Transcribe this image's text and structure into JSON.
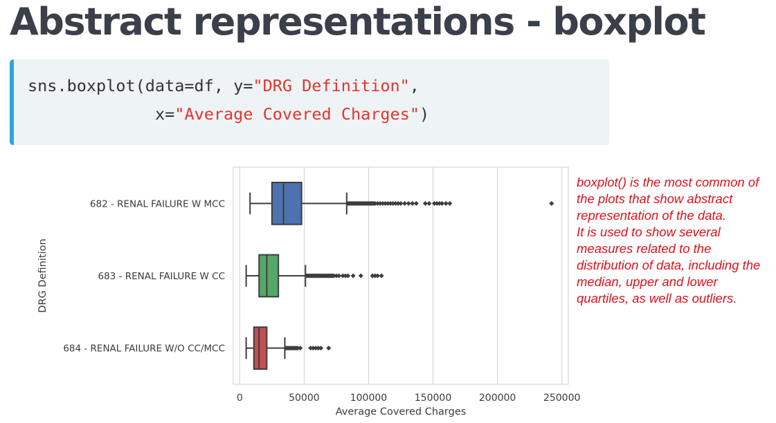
{
  "title": "Abstract representations - boxplot",
  "code": {
    "line1_prefix": "sns.boxplot(data=df, y=",
    "line1_string": "\"DRG Definition\"",
    "line1_suffix": ",",
    "line2_prefix": "x=",
    "line2_string": "\"Average Covered Charges\"",
    "line2_suffix": ")"
  },
  "annotation": {
    "paragraph1": "boxplot() is the most common of the plots that show abstract representation of the data.",
    "paragraph2": "It is used to show several measures related to the distribution of data, including the median, upper and lower quartiles, as well as outliers."
  },
  "colors": {
    "accent_bar": "#2fa7d6",
    "annotation_text": "#e0101a",
    "code_string": "#e3352b"
  },
  "chart_data": {
    "type": "boxplot",
    "orientation": "horizontal",
    "xlabel": "Average Covered Charges",
    "ylabel": "DRG Definition",
    "xlim": [
      -5000,
      255000
    ],
    "xticks": [
      0,
      50000,
      100000,
      150000,
      200000,
      250000
    ],
    "xtick_labels": [
      "0",
      "50000",
      "100000",
      "150000",
      "200000",
      "250000"
    ],
    "grid": "vertical",
    "categories": [
      "682 - RENAL FAILURE W MCC",
      "683 - RENAL FAILURE W CC",
      "684 - RENAL FAILURE W/O CC/MCC"
    ],
    "boxes": [
      {
        "category": "682 - RENAL FAILURE W MCC",
        "color": "#4c72b0",
        "whisker_low": 8000,
        "q1": 25000,
        "median": 34000,
        "q3": 48000,
        "whisker_high": 83000,
        "outliers": [
          84000,
          85000,
          86000,
          87000,
          88000,
          89000,
          90000,
          91000,
          92000,
          93000,
          94000,
          95000,
          96000,
          97000,
          98000,
          99000,
          100000,
          101000,
          102000,
          103000,
          104000,
          105000,
          107000,
          109000,
          111000,
          113000,
          115000,
          117000,
          119000,
          121000,
          123000,
          125000,
          128000,
          131000,
          134000,
          137000,
          144000,
          147000,
          151000,
          153000,
          155000,
          157000,
          160000,
          163000,
          242000
        ]
      },
      {
        "category": "683 - RENAL FAILURE W CC",
        "color": "#55a868",
        "whisker_low": 5000,
        "q1": 15000,
        "median": 21000,
        "q3": 30000,
        "whisker_high": 51000,
        "outliers": [
          52000,
          53000,
          54000,
          55000,
          56000,
          57000,
          58000,
          59000,
          60000,
          61000,
          62000,
          63000,
          64000,
          65000,
          66000,
          67000,
          68000,
          69000,
          70000,
          71000,
          72000,
          73000,
          75000,
          77000,
          80000,
          82000,
          84000,
          88000,
          94000,
          103000,
          105000,
          107000,
          110000
        ]
      },
      {
        "category": "684 - RENAL FAILURE W/O CC/MCC",
        "color": "#c44e52",
        "whisker_low": 5000,
        "q1": 11000,
        "median": 15000,
        "q3": 21000,
        "whisker_high": 35000,
        "outliers": [
          36000,
          37000,
          38000,
          39000,
          40000,
          41000,
          42000,
          43000,
          44000,
          45000,
          47000,
          55000,
          57000,
          59000,
          61000,
          63000,
          69000
        ]
      }
    ]
  }
}
